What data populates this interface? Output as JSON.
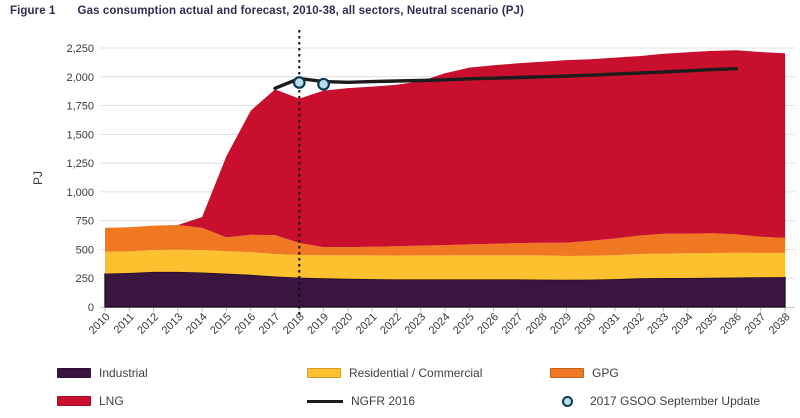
{
  "figure": {
    "label": "Figure 1",
    "title": "Gas consumption actual and forecast, 2010-38, all sectors, Neutral scenario (PJ)"
  },
  "axes": {
    "y_axis_title": "PJ",
    "y_ticks": [
      0,
      250,
      500,
      750,
      1000,
      1250,
      1500,
      1750,
      2000,
      2250
    ]
  },
  "colors": {
    "background": "#ffffff",
    "grid": "#e1e1e1",
    "axis_line": "#c9c9c9",
    "axis_tick": "#b9b9b9",
    "axis_text": "#3a3a3a",
    "title_text": "#302d52",
    "divider": "#0d0d0d"
  },
  "legend": {
    "items": [
      {
        "label": "Industrial",
        "swatch": "rect",
        "color": "#391540"
      },
      {
        "label": "Residential / Commercial",
        "swatch": "rect",
        "color": "#fdc02f"
      },
      {
        "label": "GPG",
        "swatch": "rect",
        "color": "#f07822"
      },
      {
        "label": "LNG",
        "swatch": "rect",
        "color": "#c8102e"
      },
      {
        "label": "NGFR 2016",
        "swatch": "line",
        "color": "#1c1c1c"
      },
      {
        "label": "2017 GSOO September Update",
        "swatch": "circle",
        "color": "#b9ddef",
        "stroke": "#12384f"
      }
    ]
  },
  "chart_data": {
    "type": "area",
    "stacked": true,
    "title": "Gas consumption actual and forecast, 2010-38, all sectors, Neutral scenario (PJ)",
    "xlabel": "",
    "ylabel": "PJ",
    "ylim": [
      0,
      2250
    ],
    "grid": "horizontal",
    "legend_position": "bottom",
    "divider_year": 2018,
    "x": [
      2010,
      2011,
      2012,
      2013,
      2014,
      2015,
      2016,
      2017,
      2018,
      2019,
      2020,
      2021,
      2022,
      2023,
      2024,
      2025,
      2026,
      2027,
      2028,
      2029,
      2030,
      2031,
      2032,
      2033,
      2034,
      2035,
      2036,
      2037,
      2038
    ],
    "series": [
      {
        "name": "Industrial",
        "color": "#391540",
        "values": [
          290,
          295,
          305,
          305,
          300,
          290,
          280,
          265,
          255,
          250,
          245,
          242,
          240,
          240,
          240,
          240,
          240,
          240,
          238,
          237,
          238,
          242,
          250,
          252,
          252,
          254,
          256,
          258,
          260
        ]
      },
      {
        "name": "Residential / Commercial",
        "color": "#fdc02f",
        "values": [
          190,
          188,
          190,
          192,
          195,
          195,
          197,
          195,
          197,
          200,
          205,
          206,
          207,
          208,
          208,
          209,
          210,
          210,
          210,
          206,
          207,
          208,
          210,
          212,
          215,
          215,
          215,
          212,
          210
        ]
      },
      {
        "name": "GPG",
        "color": "#f07822",
        "values": [
          207,
          210,
          212,
          215,
          192,
          120,
          150,
          165,
          104,
          70,
          70,
          75,
          80,
          85,
          90,
          95,
          100,
          105,
          110,
          115,
          130,
          145,
          160,
          172,
          170,
          172,
          160,
          140,
          130
        ]
      },
      {
        "name": "LNG",
        "color": "#c8102e",
        "values": [
          0,
          0,
          0,
          0,
          95,
          705,
          1078,
          1265,
          1254,
          1360,
          1382,
          1392,
          1403,
          1428,
          1492,
          1536,
          1550,
          1562,
          1572,
          1587,
          1577,
          1572,
          1560,
          1564,
          1576,
          1584,
          1599,
          1605,
          1605
        ]
      }
    ],
    "lines": [
      {
        "name": "NGFR 2016",
        "color": "#1c1c1c",
        "x_start": 2017,
        "values": [
          1900,
          1985,
          1958,
          1952,
          1958,
          1963,
          1968,
          1974,
          1982,
          1988,
          1994,
          2000,
          2006,
          2014,
          2023,
          2032,
          2042,
          2052,
          2062,
          2070
        ]
      }
    ],
    "points": [
      {
        "name": "2017 GSOO September Update",
        "fill": "#b9ddef",
        "stroke": "#12384f",
        "data": [
          {
            "x": 2018,
            "y": 1950
          },
          {
            "x": 2019,
            "y": 1935
          }
        ]
      }
    ]
  }
}
